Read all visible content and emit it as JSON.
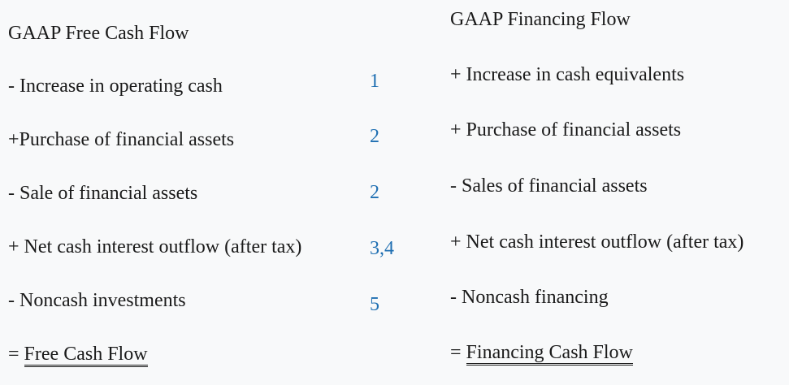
{
  "left": {
    "title": "GAAP Free Cash Flow",
    "rows": [
      {
        "text": "- Increase in operating cash",
        "ref": "1"
      },
      {
        "text": "+Purchase of financial assets",
        "ref": "2"
      },
      {
        "text": "- Sale of financial assets",
        "ref": "2"
      },
      {
        "text": "+ Net cash interest outflow (after tax)",
        "ref": "3,4"
      },
      {
        "text": "- Noncash investments",
        "ref": "5"
      }
    ],
    "result_prefix": "= ",
    "result_label": "Free Cash Flow"
  },
  "right": {
    "title": "GAAP Financing Flow",
    "rows": [
      {
        "text": "+ Increase in cash equivalents"
      },
      {
        "text": "+ Purchase of financial assets"
      },
      {
        "text": "- Sales of financial assets"
      },
      {
        "text": "+ Net cash interest outflow (after tax)"
      },
      {
        "text": "- Noncash financing"
      }
    ],
    "result_prefix": "= ",
    "result_label": "Financing Cash Flow"
  }
}
